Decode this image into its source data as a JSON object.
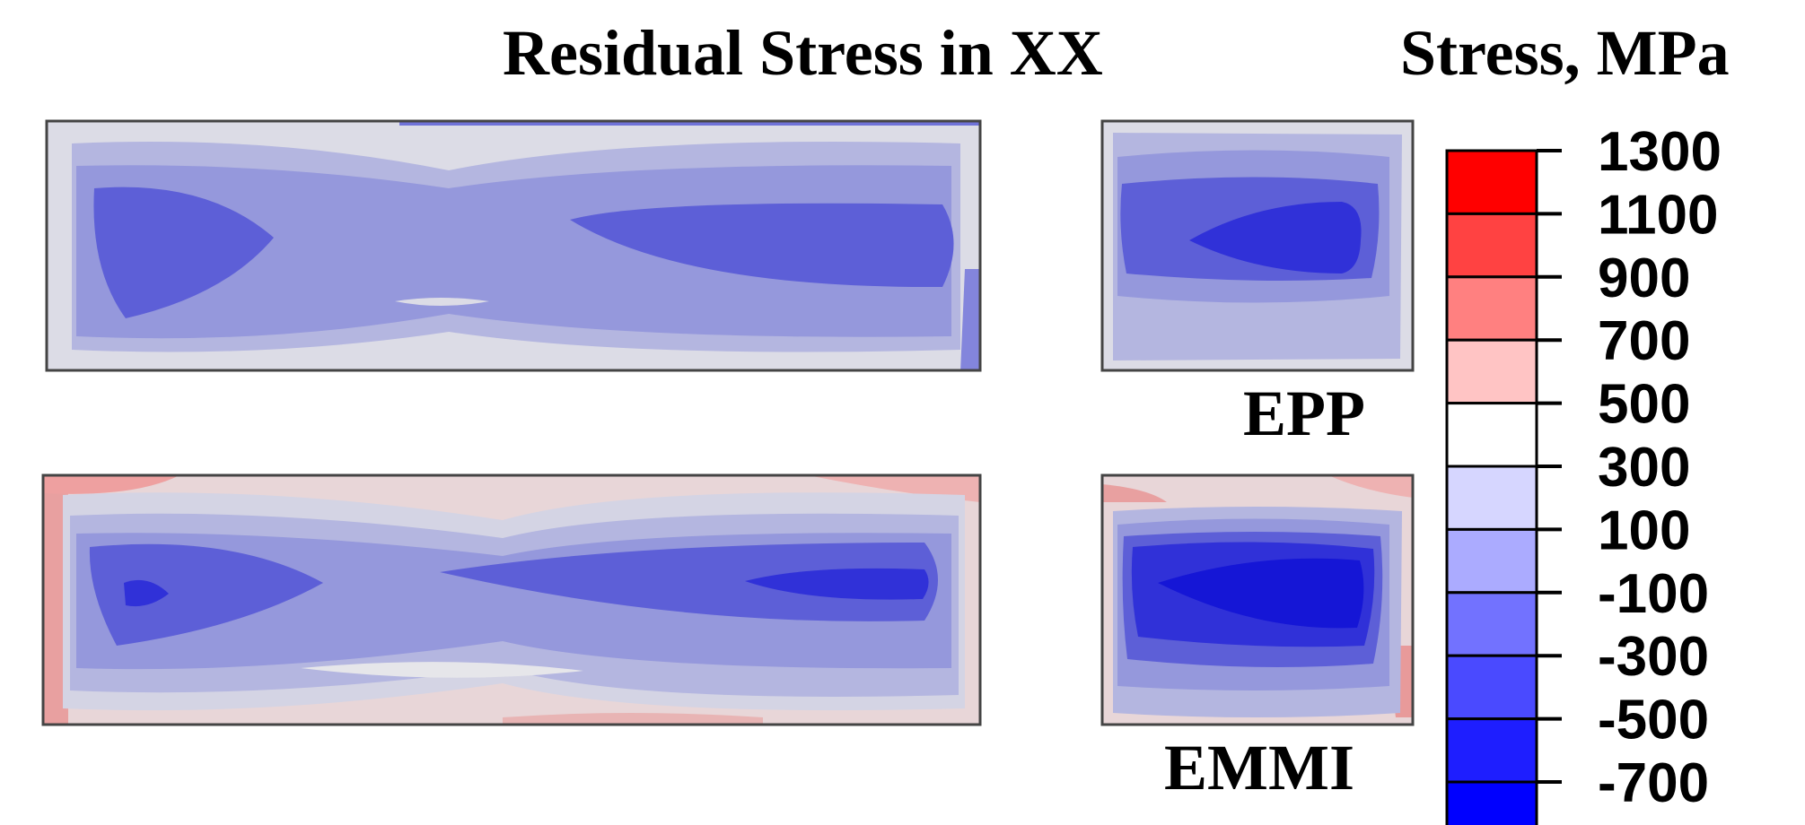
{
  "title": "Residual Stress in XX",
  "legend": {
    "title": "Stress, MPa",
    "ticks": [
      "1300",
      "1100",
      "900",
      "700",
      "500",
      "300",
      "100",
      "-100",
      "-300",
      "-500",
      "-700"
    ],
    "band_colors": [
      "#ff0000",
      "#ff4242",
      "#ff8080",
      "#ffc4c4",
      "#ffffff",
      "#d6d6ff",
      "#ababff",
      "#7272ff",
      "#4a4aff",
      "#1e1eff",
      "#0000ff"
    ]
  },
  "cases": [
    {
      "label": "EPP"
    },
    {
      "label": "EMMI"
    }
  ]
}
